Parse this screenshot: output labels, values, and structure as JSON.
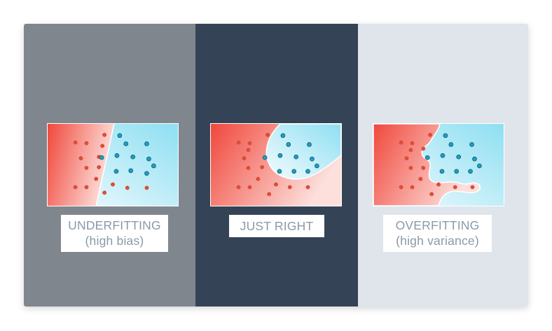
{
  "panels": [
    {
      "id": "underfitting",
      "label_line1": "UNDERFITTING",
      "label_line2": "(high bias)",
      "panel_color": "#7f868e"
    },
    {
      "id": "just-right",
      "label_line1": "JUST RIGHT",
      "label_line2": "",
      "panel_color": "#344456"
    },
    {
      "id": "overfitting",
      "label_line1": "OVERFITTING",
      "label_line2": "(high variance)",
      "panel_color": "#e0e5ec"
    }
  ],
  "colors": {
    "class_red_dark": "#f0483c",
    "class_red_light": "#fde0dc",
    "class_blue_dark": "#8edff2",
    "class_blue_light": "#f4fcfe",
    "red_point": "#d8442f",
    "blue_point": "#1e9ec2",
    "label_text": "#8a9aa8"
  }
}
